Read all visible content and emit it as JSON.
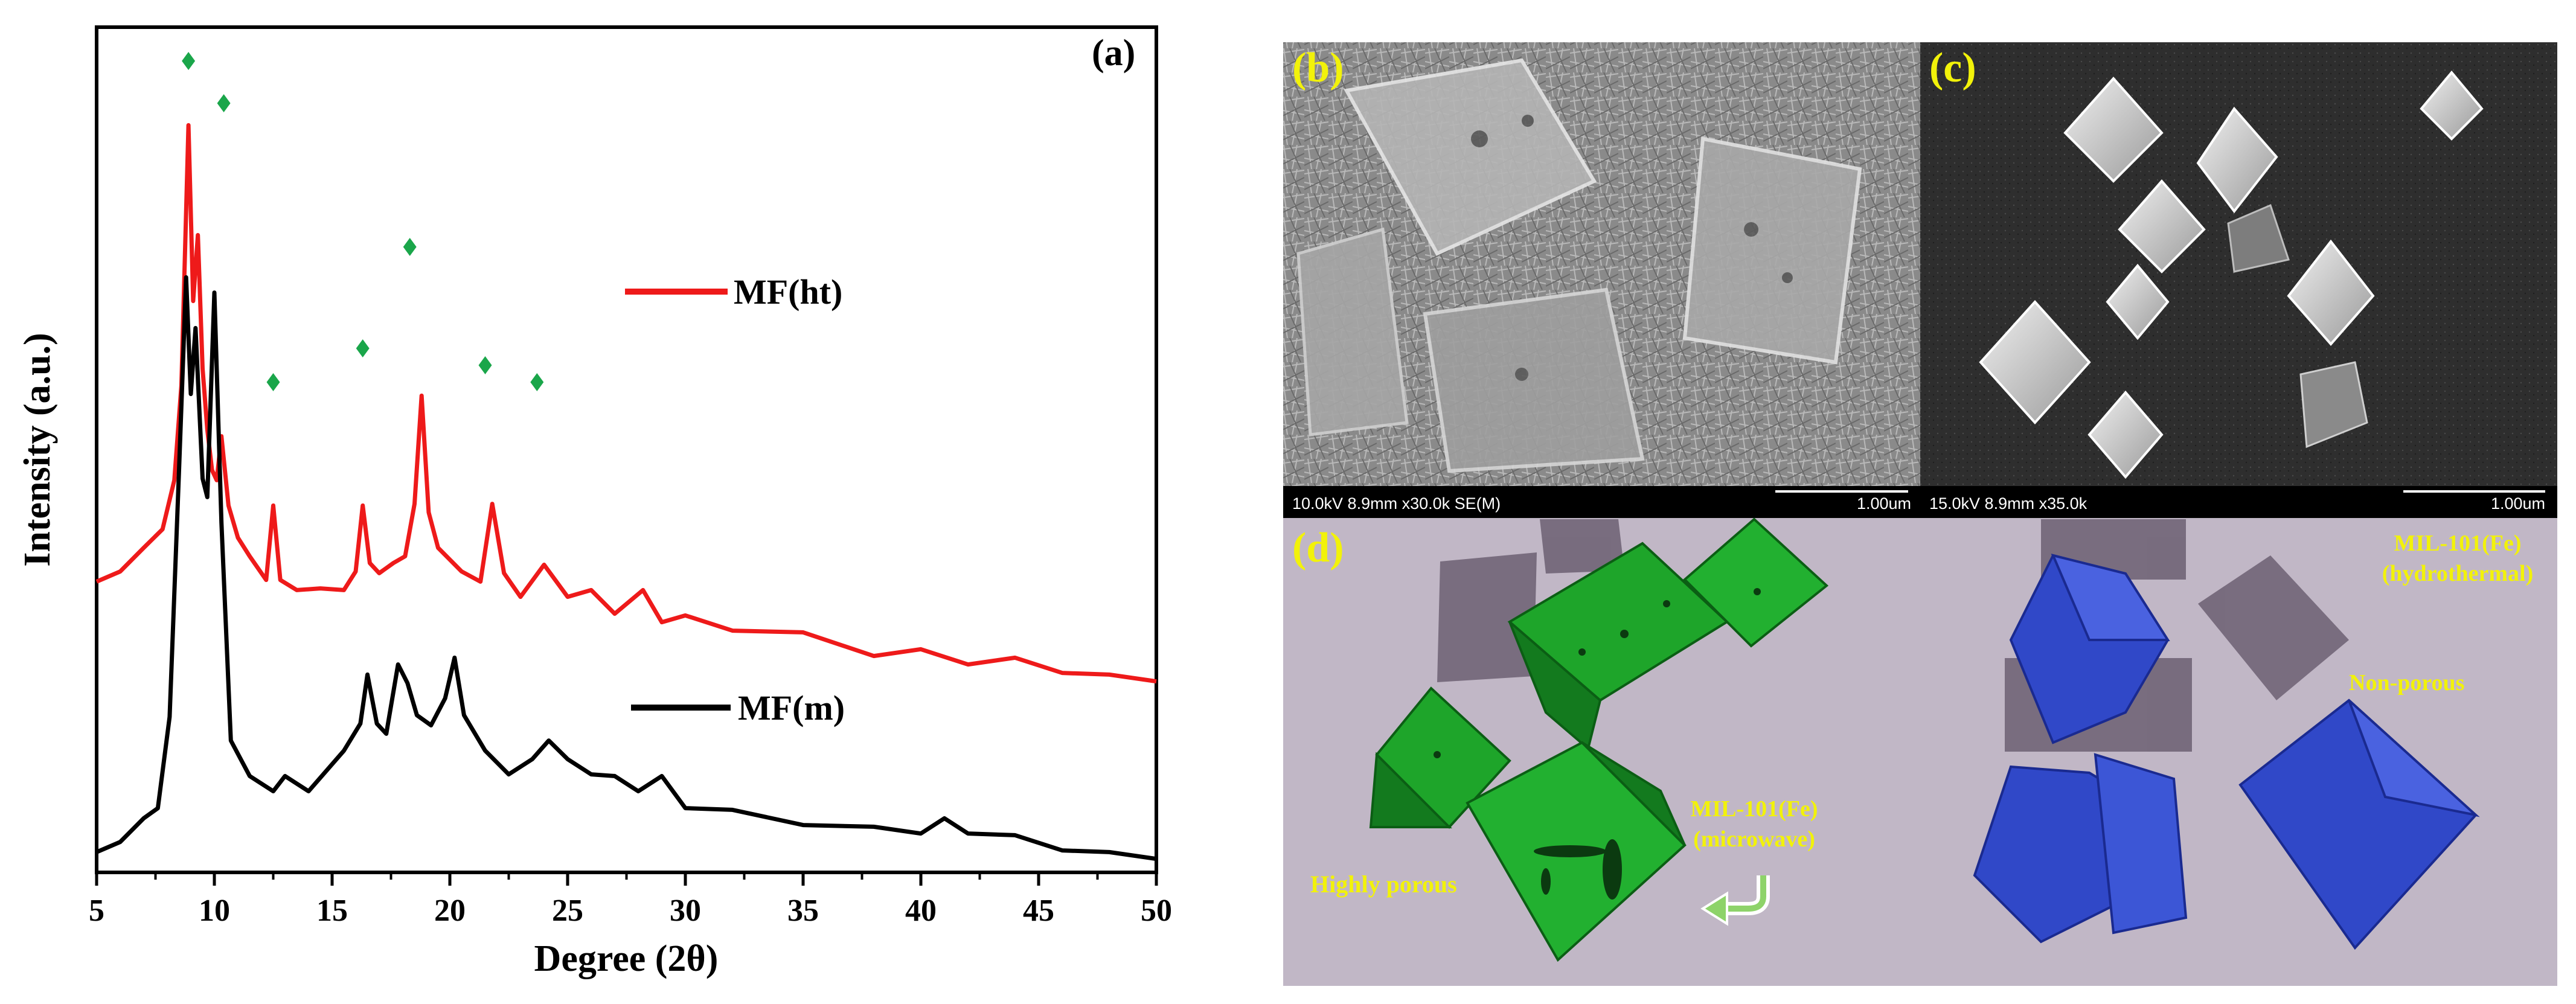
{
  "panel_a": {
    "label": "(a)",
    "chart_data": {
      "type": "line",
      "title": "",
      "xlabel": "Degree (2θ)",
      "ylabel": "Intensity (a.u.)",
      "xlim": [
        5,
        50
      ],
      "ylim": [
        0,
        1
      ],
      "x_ticks": [
        "5",
        "10",
        "15",
        "20",
        "25",
        "30",
        "35",
        "40",
        "45",
        "50"
      ],
      "grid": false,
      "legend_placement": "inline",
      "series": [
        {
          "name": "MF(ht)",
          "color": "#ee1a1a",
          "x": [
            5.0,
            6.0,
            7.0,
            7.8,
            8.3,
            8.6,
            8.9,
            9.1,
            9.3,
            9.5,
            9.7,
            9.9,
            10.1,
            10.3,
            10.6,
            11.0,
            11.5,
            12.2,
            12.5,
            12.8,
            13.5,
            14.5,
            15.5,
            16.0,
            16.3,
            16.6,
            17.0,
            17.6,
            18.1,
            18.5,
            18.8,
            19.1,
            19.5,
            20.5,
            21.3,
            21.8,
            22.3,
            23.0,
            24.0,
            25.0,
            26.0,
            27.0,
            28.2,
            29.0,
            30.0,
            32.0,
            35.0,
            38.0,
            40.0,
            42.0,
            44.0,
            46.0,
            48.0,
            50.0
          ],
          "y": [
            0.34,
            0.36,
            0.38,
            0.41,
            0.46,
            0.58,
            0.88,
            0.68,
            0.75,
            0.6,
            0.52,
            0.48,
            0.46,
            0.52,
            0.43,
            0.4,
            0.37,
            0.35,
            0.43,
            0.35,
            0.33,
            0.34,
            0.33,
            0.36,
            0.43,
            0.37,
            0.35,
            0.37,
            0.37,
            0.44,
            0.56,
            0.43,
            0.38,
            0.36,
            0.34,
            0.44,
            0.35,
            0.33,
            0.36,
            0.33,
            0.33,
            0.31,
            0.33,
            0.3,
            0.3,
            0.29,
            0.28,
            0.26,
            0.26,
            0.25,
            0.25,
            0.24,
            0.23,
            0.23
          ]
        },
        {
          "name": "MF(m)",
          "color": "#000000",
          "x": [
            5.0,
            6.0,
            7.0,
            7.6,
            8.1,
            8.5,
            8.8,
            9.0,
            9.2,
            9.5,
            9.7,
            10.0,
            10.3,
            10.7,
            11.5,
            12.5,
            13.0,
            14.0,
            15.5,
            16.2,
            16.5,
            16.9,
            17.3,
            17.8,
            18.2,
            18.6,
            19.2,
            19.8,
            20.2,
            20.6,
            21.5,
            22.5,
            23.5,
            24.2,
            25.0,
            26.0,
            27.0,
            28.0,
            29.0,
            30.0,
            32.0,
            35.0,
            38.0,
            40.0,
            41.0,
            42.0,
            44.0,
            46.0,
            48.0,
            50.0
          ],
          "y": [
            0.02,
            0.04,
            0.06,
            0.08,
            0.18,
            0.48,
            0.7,
            0.57,
            0.64,
            0.47,
            0.44,
            0.69,
            0.41,
            0.16,
            0.11,
            0.1,
            0.11,
            0.1,
            0.14,
            0.18,
            0.23,
            0.18,
            0.16,
            0.25,
            0.22,
            0.19,
            0.17,
            0.21,
            0.25,
            0.19,
            0.14,
            0.12,
            0.13,
            0.16,
            0.13,
            0.12,
            0.11,
            0.1,
            0.11,
            0.08,
            0.07,
            0.06,
            0.05,
            0.05,
            0.06,
            0.05,
            0.04,
            0.03,
            0.02,
            0.02
          ]
        }
      ],
      "diamond_markers": {
        "color": "#1aa64a",
        "points": [
          {
            "x": 8.9,
            "y": 0.96
          },
          {
            "x": 10.4,
            "y": 0.91
          },
          {
            "x": 12.5,
            "y": 0.58
          },
          {
            "x": 16.3,
            "y": 0.62
          },
          {
            "x": 18.3,
            "y": 0.74
          },
          {
            "x": 21.5,
            "y": 0.6
          },
          {
            "x": 23.7,
            "y": 0.58
          }
        ]
      }
    }
  },
  "panel_b": {
    "label": "(b)",
    "info": "10.0kV 8.9mm x30.0k SE(M)",
    "scale": "1.00um"
  },
  "panel_c": {
    "label": "(c)",
    "info": "15.0kV 8.9mm x35.0k",
    "scale": "1.00um"
  },
  "panel_d": {
    "label": "(d)",
    "microwave_title": "MIL-101(Fe)",
    "microwave_sub": "(microwave)",
    "porous_label": "Highly porous",
    "hydro_title": "MIL-101(Fe)",
    "hydro_sub": "(hydrothermal)",
    "nonporous_label": "Non-porous"
  },
  "colors": {
    "label_yellow": "#f2f20a",
    "green_crystal": "#1ea52a",
    "blue_crystal": "#3048c8",
    "shadow_purple": "#6c6072",
    "render_bg": "#c1b7c6",
    "sem_bg_b": "#8f8f8f",
    "sem_bg_c": "#2b2b2b"
  }
}
